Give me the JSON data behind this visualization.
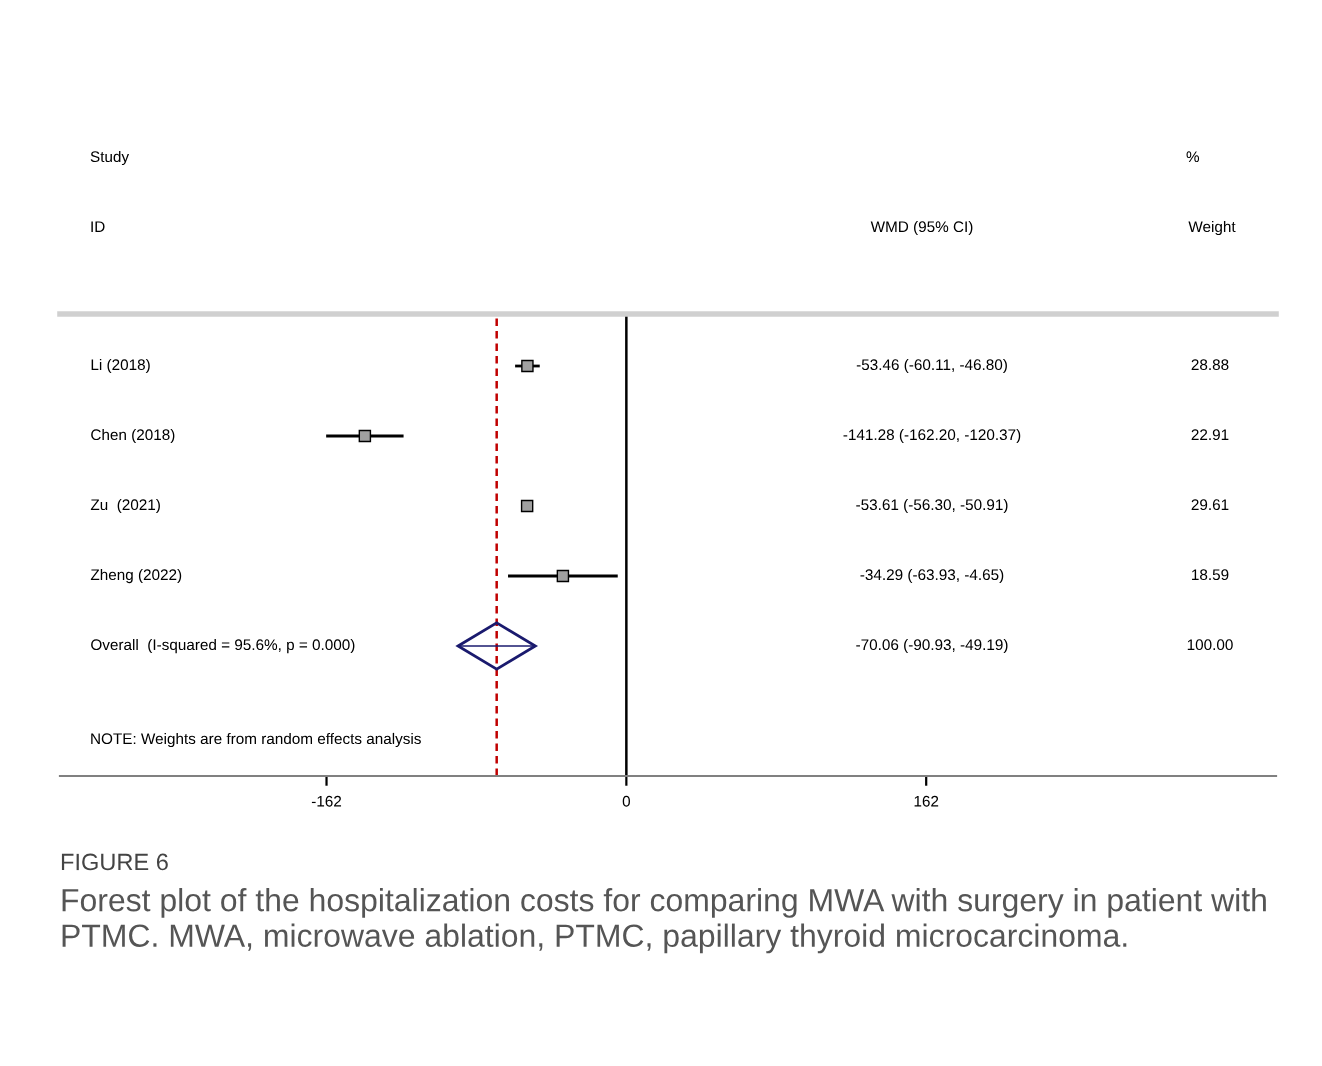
{
  "chart_data": {
    "type": "scatter",
    "orientation": "horizontal",
    "title": "FIGURE 6",
    "subtitle": "Forest plot of the hospitalization costs for comparing MWA with surgery in patient with PTMC. MWA, microwave ablation, PTMC, papillary thyroid microcarcinoma.",
    "categories": [
      "Li (2018)",
      "Chen (2018)",
      "Zu  (2021)",
      "Zheng (2022)",
      "Overall  (I-squared = 95.6%, p = 0.000)"
    ],
    "series": [
      {
        "color": "#000000",
        "marker": "square",
        "values": [
          -53.46,
          -141.28,
          -53.61,
          -34.29,
          null
        ],
        "errors": [
          [
            -60.11,
            -46.8
          ],
          [
            -162.2,
            -120.37
          ],
          [
            -56.3,
            -50.91
          ],
          [
            -63.93,
            -4.65
          ],
          null
        ]
      },
      {
        "color": "#1a1a6e",
        "marker": "diamond",
        "values": [
          null,
          null,
          null,
          null,
          -70.06
        ],
        "errors": [
          null,
          null,
          null,
          null,
          [
            -90.93,
            -49.19
          ]
        ]
      }
    ],
    "xlim": [
      -306,
      351
    ],
    "xticks": [
      -162,
      0,
      162
    ],
    "ref_lines": [
      {
        "axis": "x",
        "value": 0,
        "color": "#000000",
        "line_style": "solid"
      },
      {
        "axis": "x",
        "value": -70.06,
        "color": "#c00000",
        "line_style": "dashed"
      }
    ],
    "annotations": [
      "Study",
      "ID",
      "WMD (95% CI)",
      "%",
      "Weight",
      "NOTE: Weights are from random effects analysis",
      "-53.46 (-60.11, -46.80)",
      "-141.28 (-162.20, -120.37)",
      "-53.61 (-56.30, -50.91)",
      "-34.29 (-63.93, -4.65)",
      "-70.06 (-90.93, -49.19)",
      "28.88",
      "22.91",
      "29.61",
      "18.59",
      "100.00"
    ]
  }
}
